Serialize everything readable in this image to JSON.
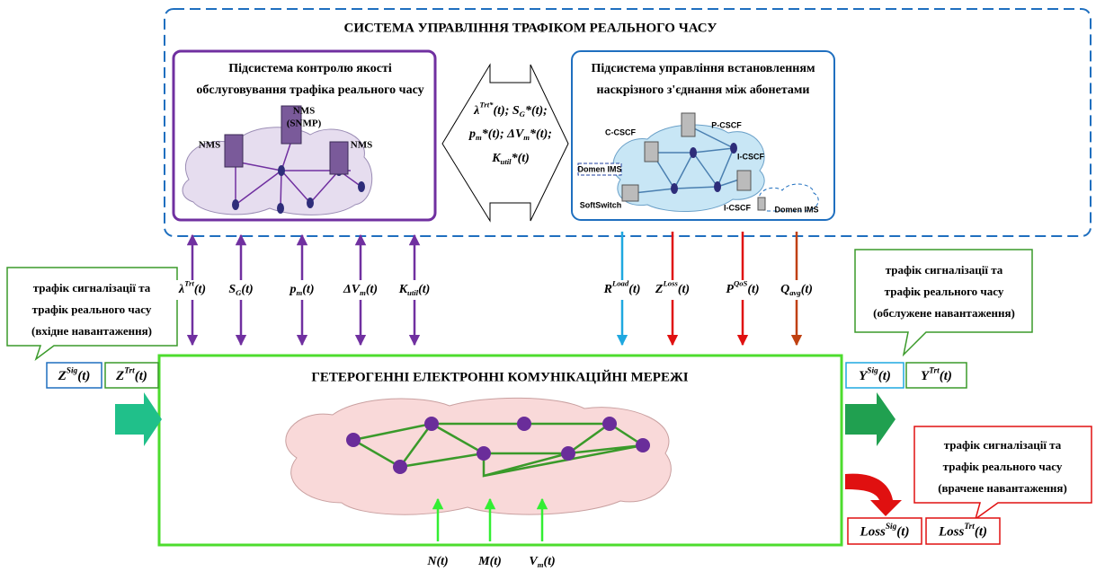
{
  "system": {
    "title": "СИСТЕМА УПРАВЛІННЯ ТРАФІКОМ РЕАЛЬНОГО ЧАСУ"
  },
  "qos_subsystem": {
    "title_lines": [
      "Підсистема  контролю якості",
      "обслуговування трафіка реального часу"
    ],
    "nodes": [
      "NMS",
      "(SNMP)",
      "NMS",
      "NMS"
    ]
  },
  "session_subsystem": {
    "title_lines": [
      "Підсистема управління встановленням",
      "наскрізного з'єднання між абонетами"
    ],
    "nodes": [
      "C-CSCF",
      "P-CSCF",
      "I-CSCF",
      "I-CSCF",
      "SoftSwitch",
      "Domen IMS",
      "Domen IMS"
    ]
  },
  "exchange": {
    "formulas": [
      [
        "λ",
        {
          "sup": "Trt*"
        },
        "(t);  S",
        {
          "sub": "G"
        },
        "*(t);"
      ],
      [
        "p",
        {
          "sub": "m"
        },
        "*(t); ΔV",
        {
          "sub": "m"
        },
        "*(t);"
      ],
      [
        "K",
        {
          "sub": "util"
        },
        "*(t)"
      ]
    ]
  },
  "control_inputs": [
    [
      "λ",
      {
        "sup": "Trt"
      },
      "(t)"
    ],
    [
      "S",
      {
        "sub": "G"
      },
      "(t)"
    ],
    [
      "p",
      {
        "sub": "m"
      },
      "(t)"
    ],
    [
      "ΔV",
      {
        "sub": "m"
      },
      "(t)"
    ],
    [
      "K",
      {
        "sub": "util"
      },
      "(t)"
    ]
  ],
  "session_outputs": [
    [
      "R",
      {
        "sup": "Load"
      },
      "(t)"
    ],
    [
      "Z",
      {
        "sup": "Loss"
      },
      "(t)"
    ],
    [
      "P",
      {
        "sup": "QoS"
      },
      "(t)"
    ],
    [
      "Q",
      {
        "sub": "avg"
      },
      "(t)"
    ]
  ],
  "network": {
    "title": "ГЕТЕРОГЕННІ ЕЛЕКТРОННІ КОМУНІКАЦІЙНІ МЕРЕЖІ"
  },
  "inputs": {
    "note_lines": [
      "трафік сигналізації   та",
      "трафік реального часу",
      "(вхідне навантаження)"
    ],
    "boxes": [
      [
        "Z",
        {
          "sup": "Sig"
        },
        "(t)"
      ],
      [
        "Z",
        {
          "sup": "Trt"
        },
        "(t)"
      ]
    ]
  },
  "served": {
    "note_lines": [
      "трафік сигналізації та",
      "трафік реального часу",
      "(обслужене навантаження)"
    ],
    "boxes": [
      [
        "Y",
        {
          "sup": "Sig"
        },
        "(t)"
      ],
      [
        "Y",
        {
          "sup": "Trt"
        },
        "(t)"
      ]
    ]
  },
  "lost": {
    "note_lines": [
      "трафік сигналізації та",
      "трафік реального часу",
      "(врачене навантаження)"
    ],
    "boxes": [
      [
        "Loss",
        {
          "sup": "Sig"
        },
        "(t)"
      ],
      [
        "Loss",
        {
          "sup": "Trt"
        },
        "(t)"
      ]
    ]
  },
  "external_inputs": [
    [
      "N",
      "(t)"
    ],
    [
      "M",
      "(t)"
    ],
    [
      "V",
      {
        "sub": "m"
      },
      "(t)"
    ]
  ]
}
